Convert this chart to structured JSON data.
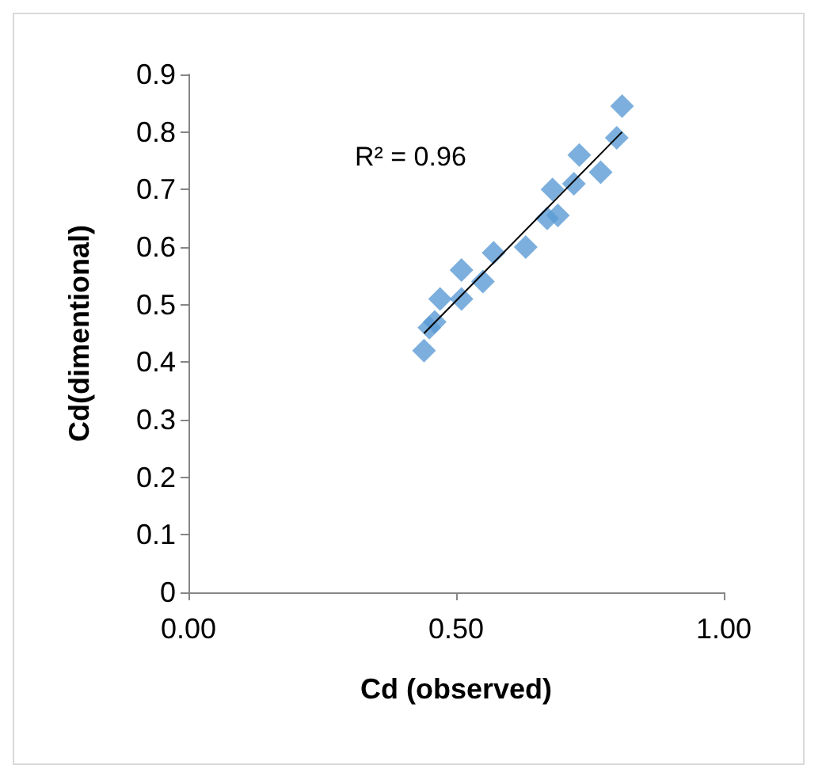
{
  "chart_data": {
    "type": "scatter",
    "xlabel": "Cd (observed)",
    "ylabel": "Cd(dimentional)",
    "annotations": [
      "R² = 0.96"
    ],
    "xlim": [
      0,
      1
    ],
    "xticks": [
      {
        "value": 0,
        "label": "0.00"
      },
      {
        "value": 0.5,
        "label": "0.50"
      },
      {
        "value": 1,
        "label": "1.00"
      }
    ],
    "ylim": [
      0,
      0.9
    ],
    "yticks": [
      0,
      0.1,
      0.2,
      0.3,
      0.4,
      0.5,
      0.6,
      0.7,
      0.8,
      0.9
    ],
    "marker": "diamond",
    "grid": false,
    "series": [
      {
        "color": "#5b9bd5",
        "x": [
          0.44,
          0.45,
          0.46,
          0.47,
          0.51,
          0.51,
          0.55,
          0.57,
          0.63,
          0.67,
          0.69,
          0.68,
          0.72,
          0.73,
          0.77,
          0.8,
          0.81
        ],
        "values": [
          0.42,
          0.46,
          0.47,
          0.51,
          0.51,
          0.56,
          0.54,
          0.59,
          0.6,
          0.65,
          0.655,
          0.7,
          0.71,
          0.76,
          0.73,
          0.79,
          0.845
        ]
      },
      {
        "type": "line",
        "color": "#000000",
        "x": [
          0.44,
          0.81
        ],
        "values": [
          0.45,
          0.8
        ],
        "marker": "none"
      }
    ]
  }
}
